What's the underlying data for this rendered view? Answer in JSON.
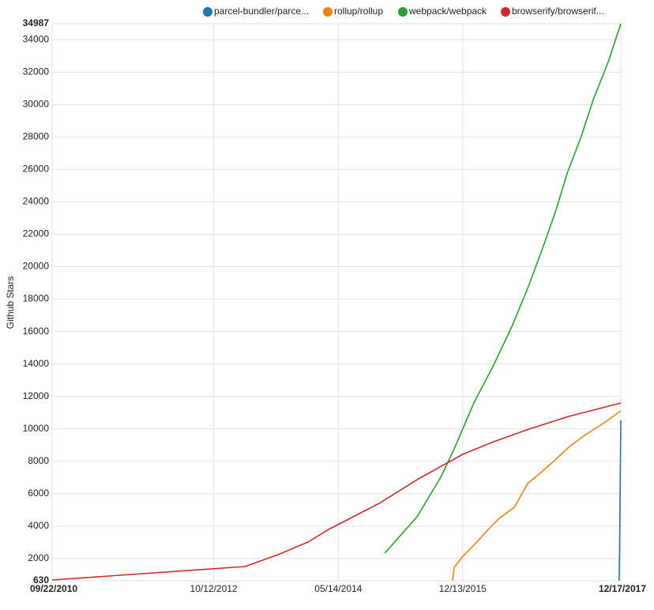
{
  "chart_data": {
    "type": "line",
    "y_label": "Github Stars",
    "xlim": [
      "09/22/2010",
      "12/17/2017"
    ],
    "xticks": [
      "09/22/2010",
      "10/12/2012",
      "05/14/2014",
      "12/13/2015",
      "12/17/2017"
    ],
    "ylim": [
      630,
      34987
    ],
    "yticks": [
      630,
      2000,
      4000,
      6000,
      8000,
      10000,
      12000,
      14000,
      16000,
      18000,
      20000,
      22000,
      24000,
      26000,
      28000,
      30000,
      32000,
      34000,
      34987
    ],
    "grid": true,
    "legend": "top",
    "series": [
      {
        "name": "parcel-bundler/parce...",
        "color": "#1f77b4",
        "x": [
          "12/09/2017",
          "12/11/2017",
          "12/14/2017",
          "12/17/2017"
        ],
        "values": [
          630,
          2335,
          6721,
          10522
        ]
      },
      {
        "name": "rollup/rollup",
        "color": "#ff7f0e",
        "x": [
          "10/27/2015",
          "11/04/2015",
          "12/14/2015",
          "02/03/2016",
          "04/24/2016",
          "05/31/2016",
          "08/09/2016",
          "10/10/2016",
          "12/15/2016",
          "02/23/2017",
          "04/19/2017",
          "07/01/2017",
          "10/01/2017",
          "12/17/2017"
        ],
        "values": [
          630,
          1458,
          2140,
          2823,
          3992,
          4480,
          5162,
          6624,
          7355,
          8183,
          8866,
          9597,
          10377,
          11108
        ]
      },
      {
        "name": "webpack/webpack",
        "color": "#2ca02c",
        "x": [
          "12/16/2014",
          "05/15/2015",
          "09/02/2015",
          "11/04/2015",
          "02/03/2016",
          "05/05/2016",
          "07/29/2016",
          "10/10/2016",
          "12/15/2016",
          "02/15/2017",
          "04/12/2017",
          "06/17/2017",
          "08/11/2017",
          "10/20/2017",
          "12/17/2017"
        ],
        "values": [
          2335,
          4577,
          7013,
          8768,
          11594,
          13933,
          16321,
          18660,
          20999,
          23339,
          25775,
          28065,
          30307,
          32646,
          34987
        ]
      },
      {
        "name": "browserify/browserif...",
        "color": "#d62728",
        "x": [
          "09/22/2010",
          "03/06/2013",
          "08/07/2013",
          "12/24/2013",
          "03/30/2014",
          "11/20/2014",
          "05/22/2015",
          "12/13/2015",
          "05/05/2016",
          "10/17/2016",
          "04/19/2017",
          "12/17/2017"
        ],
        "values": [
          680,
          1507,
          2238,
          3018,
          3797,
          5405,
          6916,
          8427,
          9207,
          9986,
          10766,
          11594
        ]
      }
    ]
  }
}
